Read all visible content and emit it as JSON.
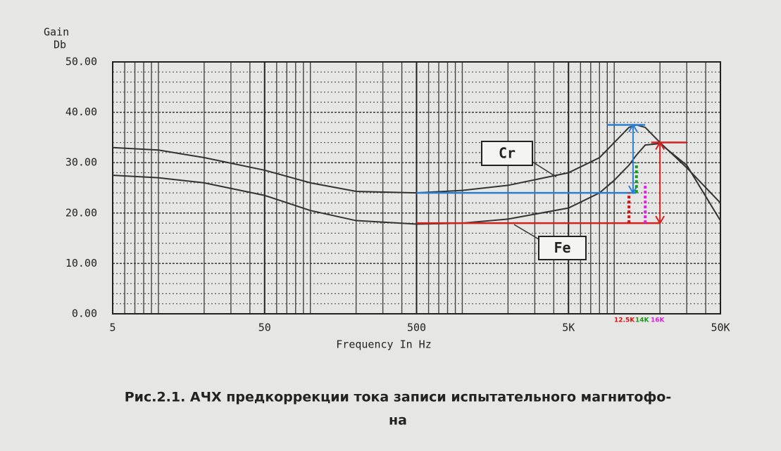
{
  "chart_data": {
    "type": "line",
    "ylabel": [
      "Gain",
      "Db"
    ],
    "xlabel": "Frequency In Hz",
    "caption": [
      "Рис.2.1. АЧХ предкоррекции тока записи испытательного магнитофо-",
      "на"
    ],
    "xscale": "log",
    "xlim": [
      5,
      50000
    ],
    "ylim": [
      0,
      50
    ],
    "xticks": [
      5,
      50,
      500,
      {
        "value": 5000,
        "label": "5K"
      },
      {
        "value": 50000,
        "label": "50K"
      }
    ],
    "yticks": [
      {
        "value": 0,
        "label": "0.00"
      },
      {
        "value": 10,
        "label": "10.00"
      },
      {
        "value": 20,
        "label": "20.00"
      },
      {
        "value": 30,
        "label": "30.00"
      },
      {
        "value": 40,
        "label": "40.00"
      },
      {
        "value": 50,
        "label": "50.00"
      }
    ],
    "grid": true,
    "x": [
      5,
      10,
      20,
      50,
      100,
      200,
      500,
      1000,
      2000,
      5000,
      8000,
      10000,
      12500,
      14000,
      16000,
      20000,
      30000,
      50000
    ],
    "series": [
      {
        "name": "Cr",
        "color": "#333333",
        "values": [
          33,
          32.5,
          31,
          28.5,
          26,
          24.3,
          24,
          24.5,
          25.5,
          28,
          31,
          34,
          37,
          37.5,
          37,
          34,
          29,
          22
        ]
      },
      {
        "name": "Fe",
        "color": "#333333",
        "values": [
          27.5,
          27,
          26,
          23.5,
          20.5,
          18.5,
          17.8,
          18,
          18.8,
          21,
          24,
          26.5,
          29.5,
          31.5,
          33.5,
          33.8,
          29.5,
          18.5
        ]
      }
    ],
    "ref_lines": [
      {
        "color": "#2a7fd4",
        "x": [
          500,
          14000
        ],
        "y": [
          24,
          24
        ]
      },
      {
        "color": "#2a7fd4",
        "x": [
          9000,
          16000
        ],
        "y": [
          37.5,
          37.5
        ]
      },
      {
        "color": "#d42020",
        "x": [
          500,
          20000
        ],
        "y": [
          18,
          18
        ]
      },
      {
        "color": "#d42020",
        "x": [
          17500,
          30000
        ],
        "y": [
          34,
          34
        ]
      }
    ],
    "arrows": [
      {
        "color": "#2a7fd4",
        "x": 13300,
        "y": [
          24,
          37.5
        ]
      },
      {
        "color": "#d42020",
        "x": 20000,
        "y": [
          18,
          34
        ]
      }
    ],
    "markers": [
      {
        "value": 12500,
        "label": "12.5K",
        "color": "#e01010",
        "y": [
          18,
          24
        ]
      },
      {
        "value": 14000,
        "label": "14K",
        "color": "#1a9a1a",
        "y": [
          24,
          30
        ]
      },
      {
        "value": 16000,
        "label": "16K",
        "color": "#e020e0",
        "y": [
          18,
          26
        ]
      }
    ]
  }
}
